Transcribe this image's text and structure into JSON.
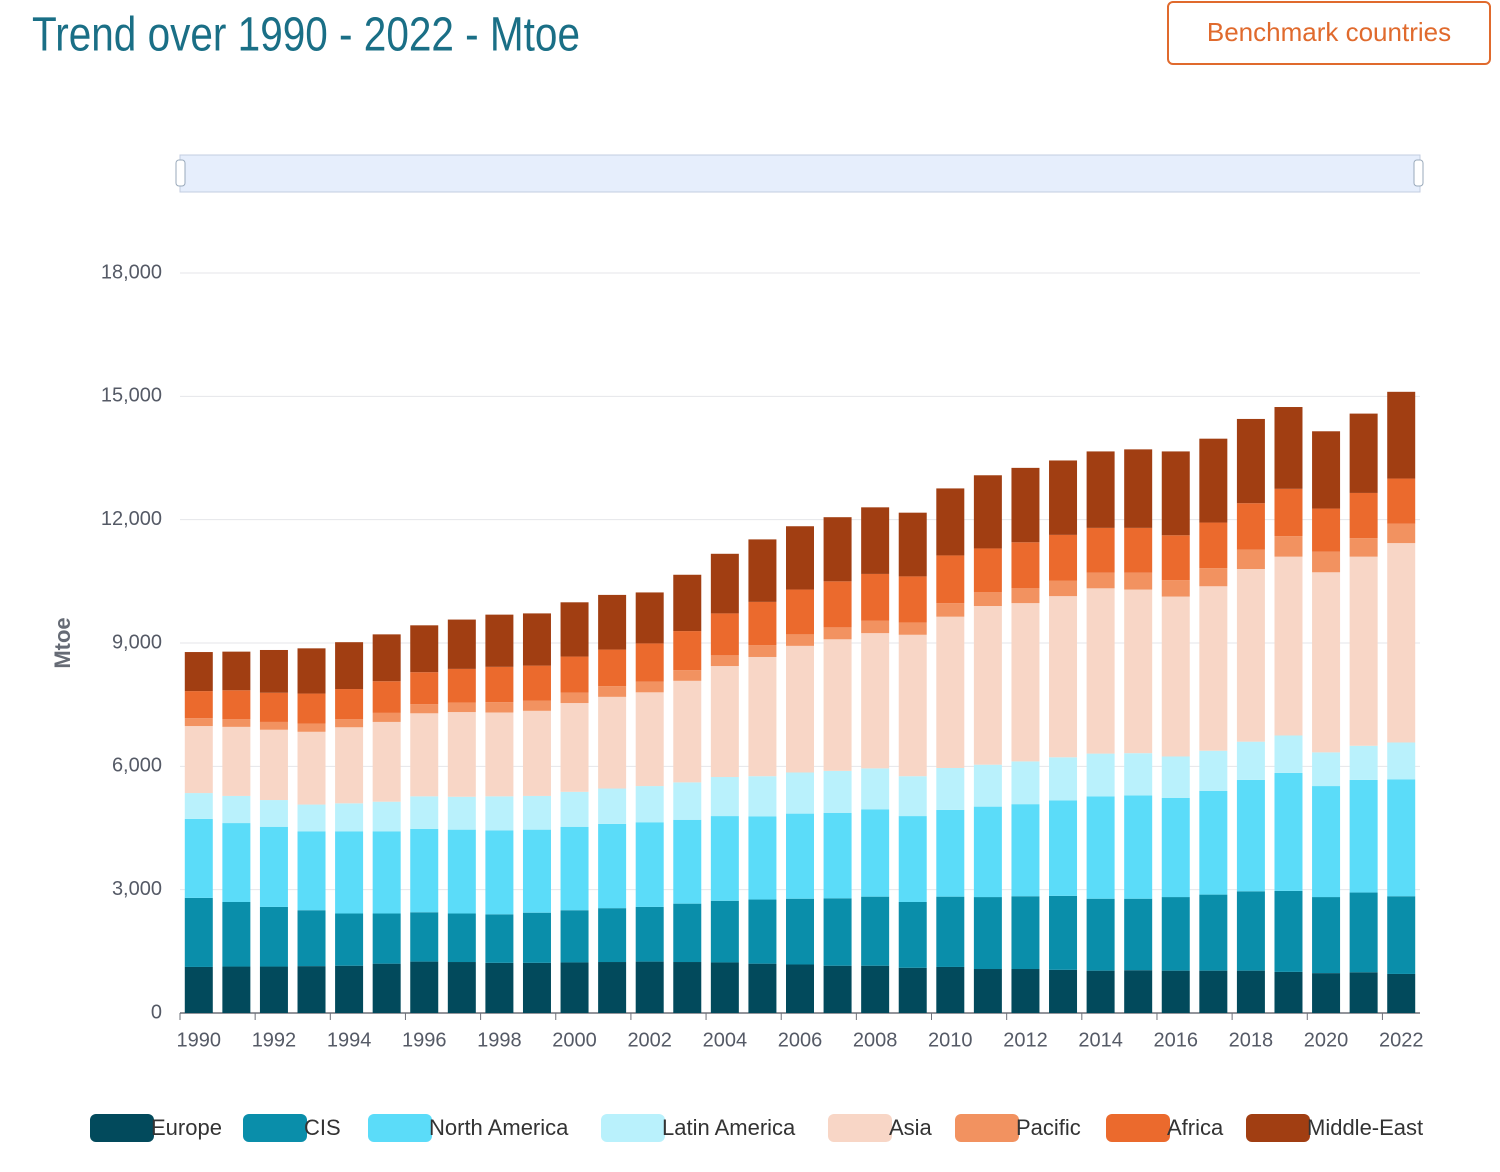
{
  "header": {
    "title": "Trend over 1990 - 2022 - Mtoe",
    "button": "Benchmark countries"
  },
  "chart_data": {
    "type": "stacked-bar",
    "y_label": "Mtoe",
    "categories": [
      1990,
      null,
      1992,
      null,
      1994,
      null,
      1996,
      null,
      1998,
      null,
      2000,
      null,
      2002,
      null,
      2004,
      null,
      2006,
      null,
      2008,
      null,
      2010,
      null,
      2012,
      null,
      2014,
      null,
      2016,
      null,
      2018,
      null,
      2020,
      null,
      2022
    ],
    "ylim": [
      0,
      18000
    ],
    "yticks": [
      0,
      {
        "value": 3000,
        "label": "3,000"
      },
      {
        "value": 6000,
        "label": "6,000"
      },
      {
        "value": 9000,
        "label": "9,000"
      },
      {
        "value": 12000,
        "label": "12,000"
      },
      {
        "value": 15000,
        "label": "15,000"
      },
      {
        "value": 18000,
        "label": "18,000"
      }
    ],
    "grid": true,
    "series": [
      {
        "name": "Europe",
        "color": "#024a5c",
        "values": [
          1120,
          1130,
          1130,
          1140,
          1150,
          1200,
          1250,
          1240,
          1220,
          1220,
          1230,
          1240,
          1250,
          1240,
          1230,
          1200,
          1180,
          1150,
          1150,
          1100,
          1120,
          1070,
          1070,
          1050,
          1030,
          1040,
          1030,
          1030,
          1030,
          1000,
          970,
          990,
          950
        ]
      },
      {
        "name": "CIS",
        "color": "#0a8eaa",
        "values": [
          1680,
          1570,
          1450,
          1360,
          1270,
          1220,
          1200,
          1180,
          1180,
          1220,
          1270,
          1310,
          1330,
          1420,
          1500,
          1560,
          1600,
          1640,
          1680,
          1600,
          1710,
          1750,
          1770,
          1800,
          1750,
          1740,
          1790,
          1850,
          1930,
          1970,
          1850,
          1940,
          1890
        ]
      },
      {
        "name": "North America",
        "color": "#5bdcf9",
        "values": [
          1920,
          1920,
          1950,
          1920,
          2000,
          2000,
          2030,
          2040,
          2040,
          2020,
          2030,
          2050,
          2060,
          2040,
          2060,
          2020,
          2070,
          2080,
          2120,
          2090,
          2110,
          2200,
          2240,
          2320,
          2490,
          2510,
          2410,
          2520,
          2710,
          2870,
          2700,
          2740,
          2840
        ]
      },
      {
        "name": "Latin America",
        "color": "#b9f1fc",
        "values": [
          630,
          660,
          650,
          650,
          680,
          720,
          790,
          800,
          830,
          820,
          850,
          860,
          880,
          910,
          950,
          980,
          1000,
          1020,
          1000,
          970,
          1020,
          1020,
          1040,
          1050,
          1040,
          1030,
          1010,
          980,
          930,
          910,
          820,
          830,
          900
        ]
      },
      {
        "name": "Asia",
        "color": "#f8d6c6",
        "values": [
          1630,
          1680,
          1710,
          1770,
          1850,
          1940,
          2020,
          2060,
          2040,
          2070,
          2160,
          2230,
          2280,
          2470,
          2700,
          2900,
          3080,
          3200,
          3290,
          3440,
          3680,
          3860,
          3850,
          3920,
          4020,
          3980,
          3890,
          4000,
          4200,
          4350,
          4380,
          4600,
          4850
        ]
      },
      {
        "name": "Pacific",
        "color": "#f29260",
        "values": [
          190,
          190,
          190,
          200,
          200,
          220,
          220,
          230,
          250,
          250,
          250,
          260,
          260,
          260,
          260,
          290,
          280,
          290,
          300,
          300,
          330,
          340,
          360,
          380,
          380,
          410,
          400,
          440,
          470,
          500,
          500,
          450,
          470
        ]
      },
      {
        "name": "Africa",
        "color": "#eb6a2d",
        "values": [
          660,
          700,
          710,
          730,
          730,
          770,
          780,
          820,
          860,
          850,
          880,
          890,
          930,
          950,
          1020,
          1050,
          1090,
          1120,
          1140,
          1120,
          1160,
          1060,
          1120,
          1110,
          1090,
          1090,
          1090,
          1110,
          1130,
          1150,
          1050,
          1100,
          1100
        ]
      },
      {
        "name": "Middle-East",
        "color": "#a13e12",
        "values": [
          950,
          940,
          1040,
          1100,
          1140,
          1140,
          1140,
          1200,
          1270,
          1270,
          1320,
          1330,
          1240,
          1370,
          1450,
          1520,
          1540,
          1560,
          1620,
          1550,
          1630,
          1780,
          1810,
          1810,
          1860,
          1910,
          2040,
          2040,
          2050,
          1990,
          1880,
          1930,
          2110
        ]
      }
    ]
  }
}
